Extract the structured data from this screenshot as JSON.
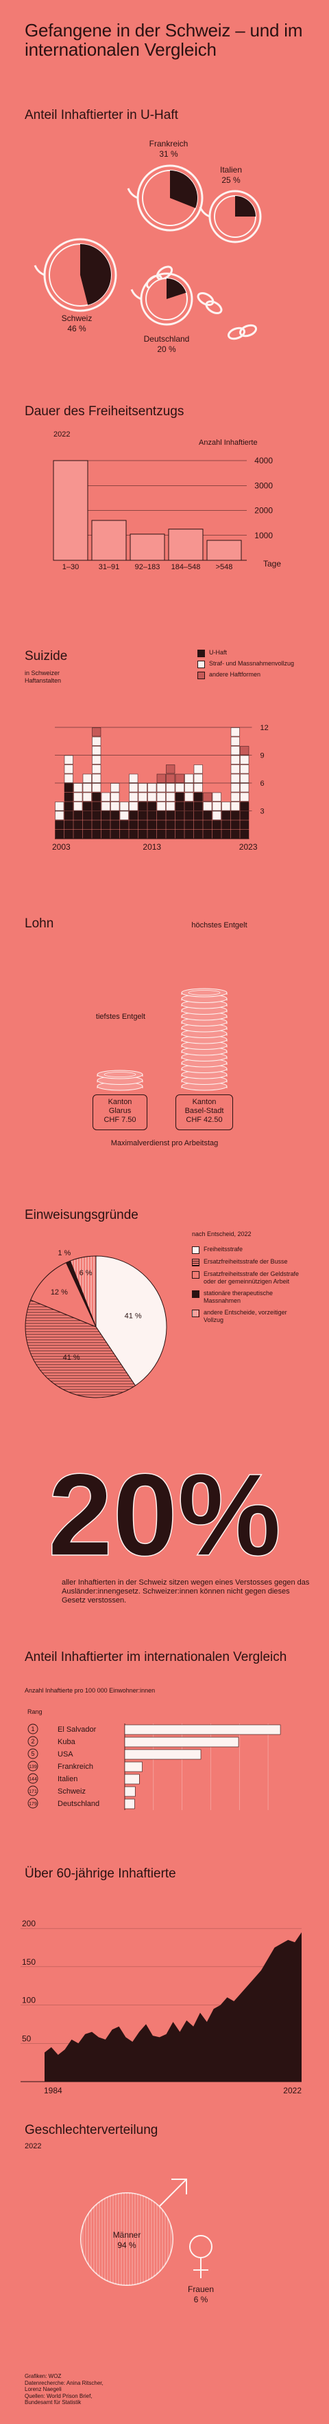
{
  "title": "Gefangene in der Schweiz – und im internationalen Vergleich",
  "colors": {
    "bg": "#f27b74",
    "ink": "#2a1212",
    "white": "#fdf3f1",
    "hatch": "#c65a58"
  },
  "uhaft": {
    "heading": "Anteil Inhaftierter in U-Haft",
    "items": [
      {
        "country": "Frankreich",
        "value": "31 %",
        "pct": 31
      },
      {
        "country": "Italien",
        "value": "25 %",
        "pct": 25
      },
      {
        "country": "Schweiz",
        "value": "46 %",
        "pct": 46
      },
      {
        "country": "Deutschland",
        "value": "20 %",
        "pct": 20
      }
    ]
  },
  "dauer": {
    "heading": "Dauer des Freiheitsentzugs",
    "year": "2022",
    "unit": "Anzahl Inhaftierte",
    "xaxis_label": "Tage",
    "yticks": [
      "4000",
      "3000",
      "2000",
      "1000"
    ]
  },
  "suizide": {
    "heading": "Suizide",
    "subtitle": "in Schweizer Haftanstalten",
    "legend": [
      "U-Haft",
      "Straf- und Massnahmenvollzug",
      "andere Haftformen"
    ],
    "xticks": [
      "2003",
      "2013",
      "2023"
    ],
    "yticks": [
      "12",
      "9",
      "6",
      "3"
    ]
  },
  "lohn": {
    "heading": "Lohn",
    "low_label": "tiefstes Entgelt",
    "high_label": "höchstes Entgelt",
    "low_box": [
      "Kanton",
      "Glarus",
      "CHF 7.50"
    ],
    "high_box": [
      "Kanton",
      "Basel-Stadt",
      "CHF 42.50"
    ],
    "caption": "Maximalverdienst pro Arbeitstag"
  },
  "einweisung": {
    "heading": "Einweisungsgründe",
    "legend_title": "nach Entscheid, 2022",
    "legend": [
      "Freiheitsstrafe",
      "Ersatzfreiheitsstrafe der Busse",
      "Ersatzfreiheitsstrafe der Geldstrafe oder der gemeinnützigen Arbeit",
      "stationäre therapeutische Massnahmen",
      "andere Entscheide, vorzeitiger Vollzug"
    ]
  },
  "zwanzig": {
    "big": "20%",
    "text": "aller Inhaftierten in der Schweiz sitzen wegen eines Verstosses gegen das Ausländer:innengesetz. Schweizer:innen können nicht gegen dieses Gesetz verstossen."
  },
  "international": {
    "heading": "Anteil Inhaftierter im internationalen Vergleich",
    "subtitle": "Anzahl Inhaftierte pro 100 000 Einwohner:innen",
    "rank_label": "Rang"
  },
  "ueber60": {
    "heading": "Über 60-jährige Inhaftierte",
    "yticks": [
      "200",
      "150",
      "100",
      "50"
    ],
    "xticks": [
      "1984",
      "2022"
    ]
  },
  "geschlecht": {
    "heading": "Geschlechterverteilung",
    "year": "2022",
    "men_label": "Männer",
    "men_value": "94 %",
    "women_label": "Frauen",
    "women_value": "6 %"
  },
  "credits": [
    "Grafiken: WOZ",
    "Datenrecherche: Anina Ritscher,",
    "Lorenz Naegeli",
    "Quellen: World Prison Brief,",
    "Bundesamt für Statistik"
  ],
  "chart_data": [
    {
      "type": "pie",
      "title": "Anteil Inhaftierter in U-Haft",
      "categories": [
        "Frankreich",
        "Italien",
        "Schweiz",
        "Deutschland"
      ],
      "values": [
        31,
        25,
        46,
        20
      ]
    },
    {
      "type": "bar",
      "title": "Dauer des Freiheitsentzugs",
      "categories": [
        "1–30",
        "31–91",
        "92–183",
        "184–548",
        ">548"
      ],
      "values": [
        4000,
        1600,
        1050,
        1250,
        800
      ],
      "ylabel": "Anzahl Inhaftierte",
      "xlabel": "Tage",
      "ylim": [
        0,
        4000
      ]
    },
    {
      "type": "bar",
      "title": "Suizide",
      "categories": [
        "2003",
        "2004",
        "2005",
        "2006",
        "2007",
        "2008",
        "2009",
        "2010",
        "2011",
        "2012",
        "2013",
        "2014",
        "2015",
        "2016",
        "2017",
        "2018",
        "2019",
        "2020",
        "2021",
        "2022",
        "2023"
      ],
      "series": [
        {
          "name": "U-Haft",
          "values": [
            2,
            6,
            3,
            4,
            5,
            3,
            3,
            2,
            3,
            4,
            4,
            3,
            3,
            5,
            4,
            5,
            3,
            2,
            3,
            3,
            4
          ]
        },
        {
          "name": "Straf- und Massnahmenvollzug",
          "values": [
            2,
            3,
            3,
            3,
            6,
            2,
            3,
            2,
            4,
            2,
            2,
            3,
            3,
            1,
            3,
            3,
            1,
            3,
            1,
            9,
            5
          ]
        },
        {
          "name": "andere Haftformen",
          "values": [
            0,
            0,
            0,
            0,
            1,
            0,
            0,
            0,
            0,
            0,
            0,
            1,
            2,
            1,
            0,
            0,
            1,
            0,
            0,
            0,
            1
          ]
        }
      ],
      "ylim": [
        0,
        14
      ]
    },
    {
      "type": "bar",
      "title": "Lohn",
      "categories": [
        "Kanton Glarus",
        "Kanton Basel-Stadt"
      ],
      "values": [
        7.5,
        42.5
      ],
      "ylabel": "CHF"
    },
    {
      "type": "pie",
      "title": "Einweisungsgründe",
      "categories": [
        "Freiheitsstrafe",
        "Ersatzfreiheitsstrafe der Busse",
        "Ersatzfreiheitsstrafe der Geldstrafe oder der gemeinnützigen Arbeit",
        "stationäre therapeutische Massnahmen",
        "andere Entscheide, vorzeitiger Vollzug"
      ],
      "values": [
        41,
        41,
        12,
        1,
        6
      ]
    },
    {
      "type": "bar",
      "title": "Anteil Inhaftierter im internationalen Vergleich",
      "categories": [
        "El Salvador",
        "Kuba",
        "USA",
        "Frankreich",
        "Italien",
        "Schweiz",
        "Deutschland"
      ],
      "ranks": [
        "1",
        "2",
        "5",
        "139",
        "144",
        "171",
        "179"
      ],
      "values": [
        1086,
        794,
        531,
        122,
        102,
        73,
        69
      ]
    },
    {
      "type": "area",
      "title": "Über 60-jährige Inhaftierte",
      "x": [
        1984,
        1985,
        1986,
        1987,
        1988,
        1989,
        1990,
        1991,
        1992,
        1993,
        1994,
        1995,
        1996,
        1997,
        1998,
        1999,
        2000,
        2001,
        2002,
        2003,
        2004,
        2005,
        2006,
        2007,
        2008,
        2009,
        2010,
        2011,
        2012,
        2013,
        2014,
        2015,
        2016,
        2017,
        2018,
        2019,
        2020,
        2021,
        2022
      ],
      "values": [
        38,
        45,
        35,
        42,
        55,
        50,
        62,
        65,
        58,
        55,
        68,
        72,
        58,
        52,
        65,
        75,
        60,
        58,
        62,
        78,
        65,
        80,
        72,
        90,
        78,
        95,
        100,
        110,
        105,
        115,
        125,
        135,
        145,
        160,
        175,
        180,
        185,
        182,
        195
      ],
      "ylim": [
        0,
        210
      ]
    },
    {
      "type": "pie",
      "title": "Geschlechterverteilung",
      "categories": [
        "Männer",
        "Frauen"
      ],
      "values": [
        94,
        6
      ]
    }
  ]
}
